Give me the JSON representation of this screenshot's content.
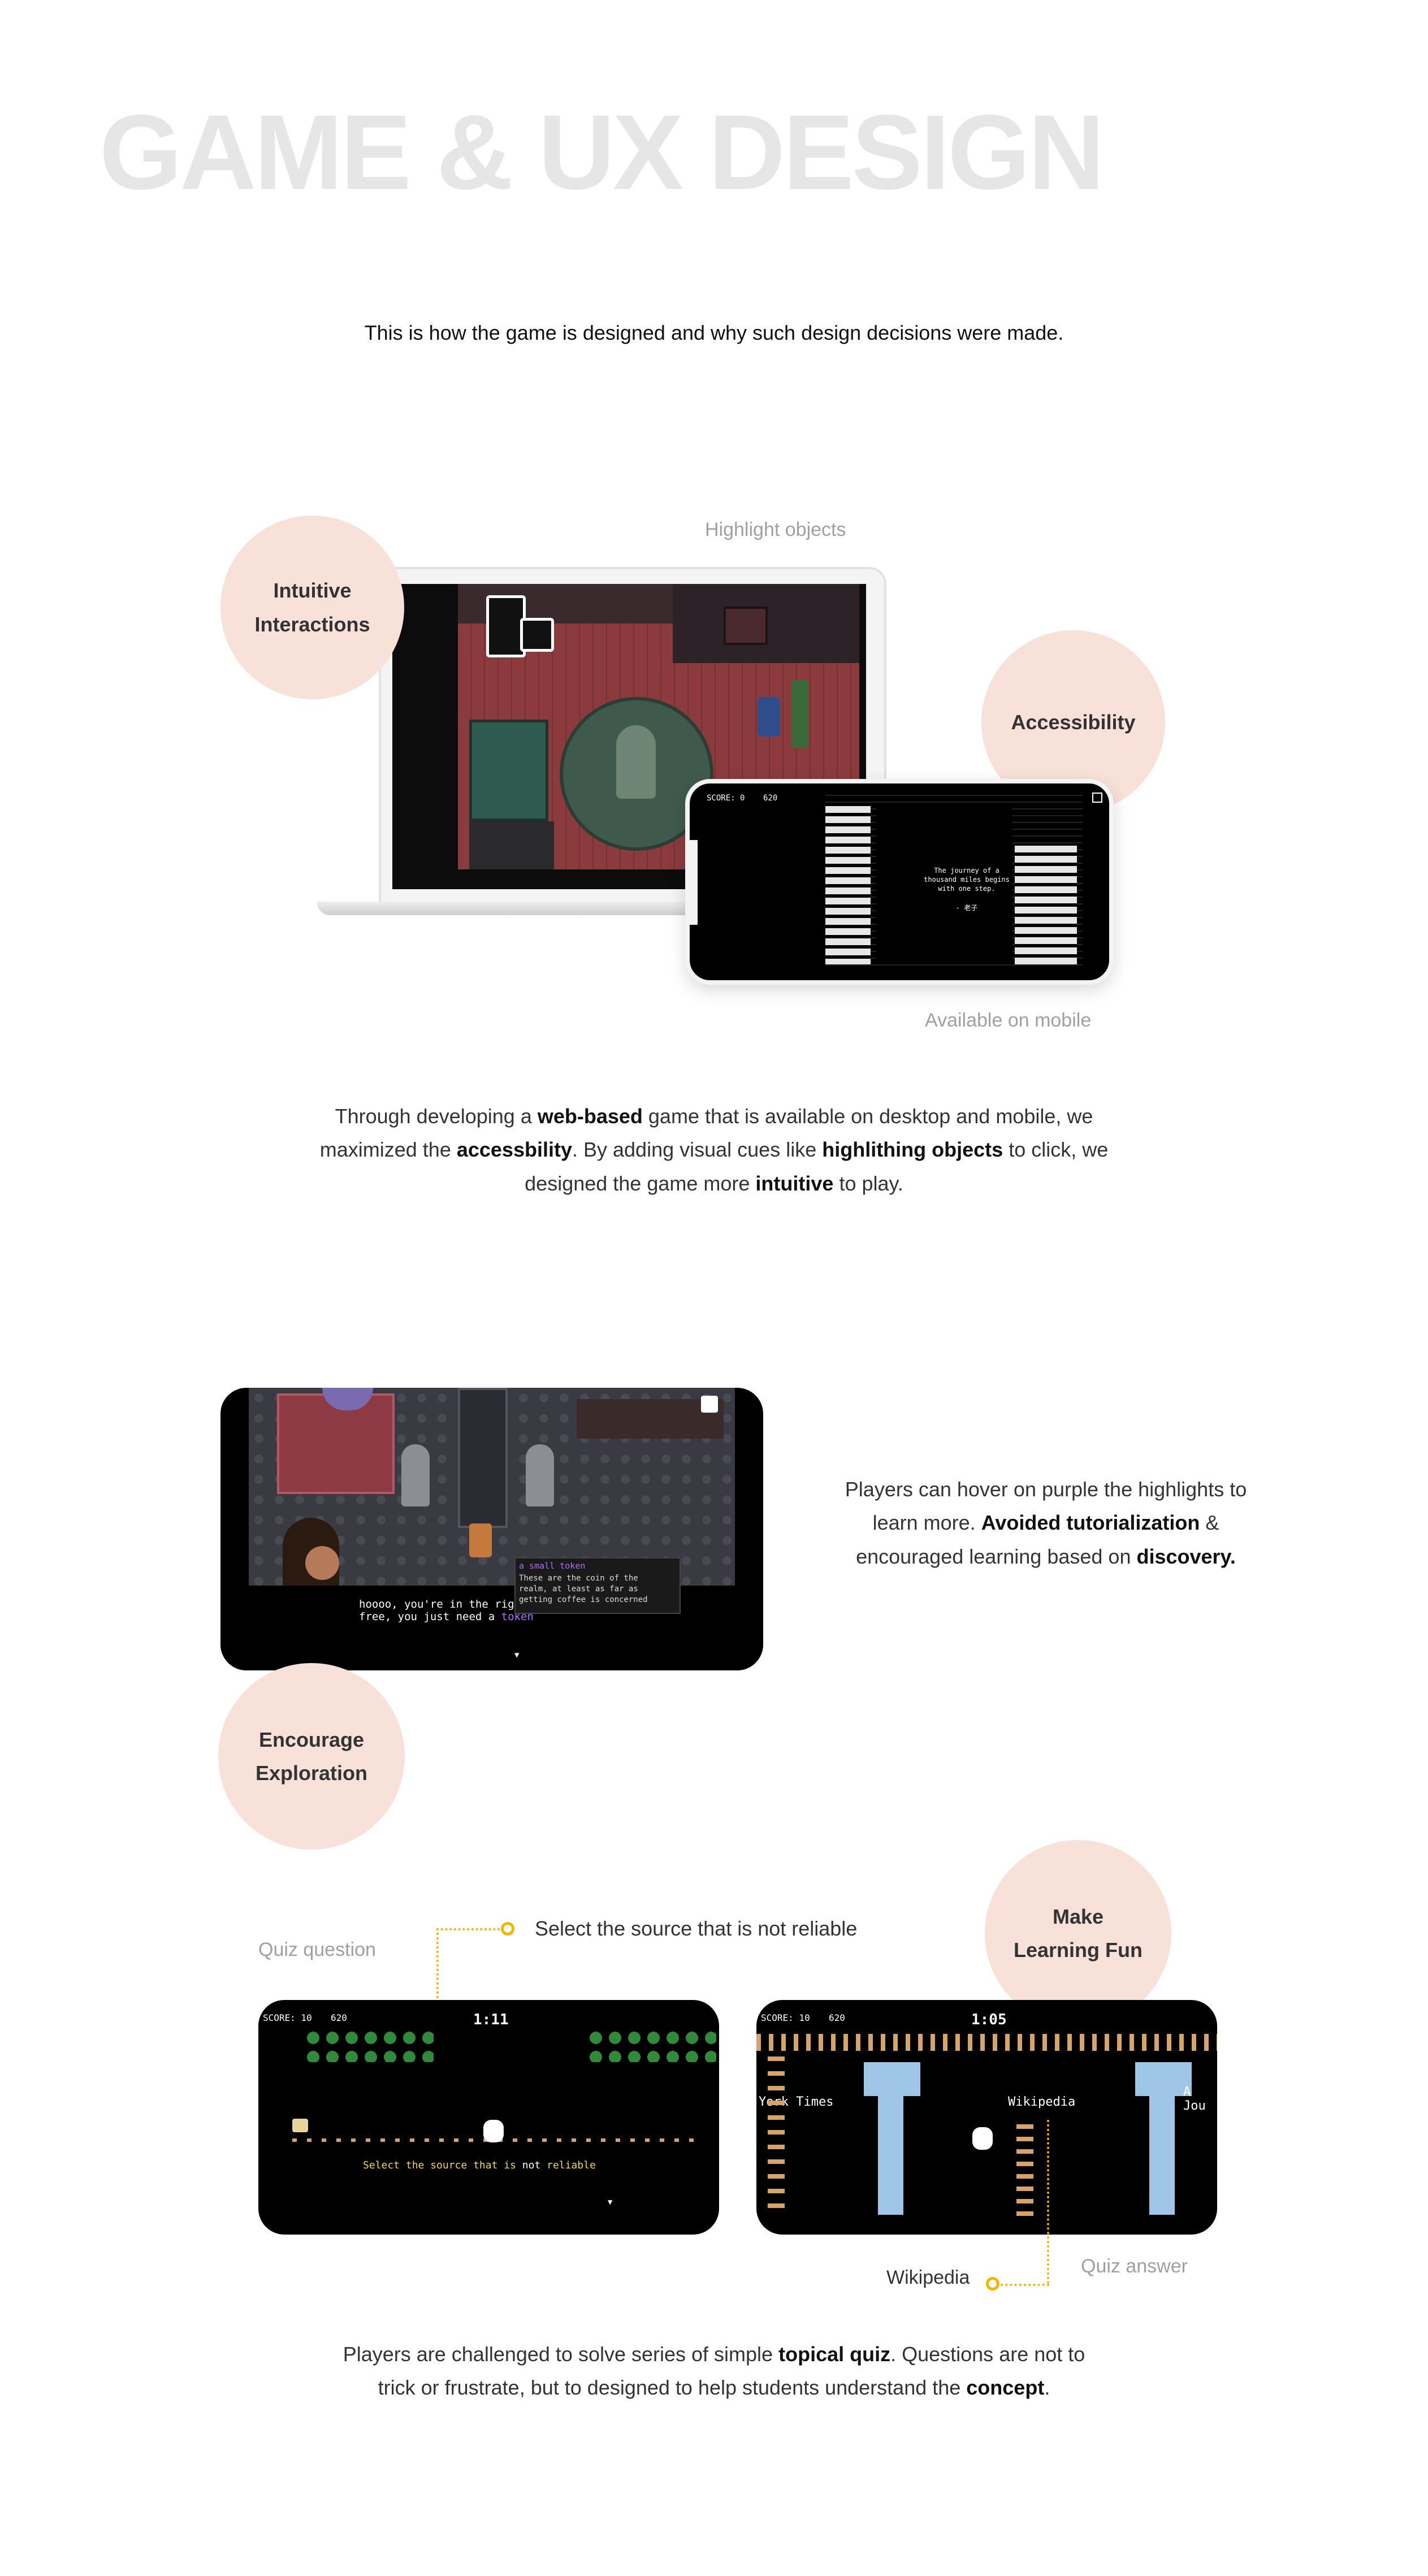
{
  "header": {
    "title": "GAME & UX DESIGN",
    "subtitle": "This is how the game is designed and why such design decisions were made."
  },
  "section1": {
    "circle_intuitive": [
      "Intuitive",
      "Interactions"
    ],
    "circle_accessibility": "Accessibility",
    "caption_highlight": "Highlight objects",
    "caption_mobile": "Available on mobile",
    "mobile_score": "SCORE: 0",
    "mobile_coins": "620",
    "mobile_quote": [
      "The journey of a",
      "thousand miles begins",
      "with one step.",
      "- 老子"
    ],
    "paragraph": {
      "p1": "Through developing a ",
      "b1": "web-based",
      "p2": " game that is available on desktop and mobile, we maximized the ",
      "b2": "accessbility",
      "p3": ". By adding visual cues like ",
      "b3": "highlithing objects",
      "p4": " to click, we designed the game more ",
      "b4": "intuitive",
      "p5": " to play."
    }
  },
  "section2": {
    "circle_encourage": [
      "Encourage",
      "Exploration"
    ],
    "dialog_line1": "hoooo, you're in the right",
    "dialog_line2_a": "free, you just need a ",
    "dialog_line2_b": "token",
    "tooltip_title": "a small token",
    "tooltip_body": [
      "These are the coin of the",
      "realm, at least as far as",
      "getting coffee is concerned"
    ],
    "paragraph": {
      "p1": "Players can hover on purple the highlights to learn more. ",
      "b1": "Avoided tutorialization",
      "p2": " & encouraged learning based on ",
      "b2": "discovery."
    }
  },
  "section3": {
    "circle_fun": [
      "Make",
      "Learning Fun"
    ],
    "caption_quiz_question": "Quiz question",
    "quiz_prompt": "Select the source that is not reliable",
    "caption_quiz_answer": "Quiz answer",
    "answer_label": "Wikipedia",
    "screen1": {
      "score": "SCORE: 10",
      "coins": "620",
      "timer": "1:11",
      "bottom_text_a": "Select the source that is ",
      "bottom_text_b": "not",
      "bottom_text_c": " reliable"
    },
    "screen2": {
      "score": "SCORE: 10",
      "coins": "620",
      "timer": "1:05",
      "left_sign": "York Times",
      "middle_sign": "Wikipedia",
      "right_sign": "A Jou"
    },
    "paragraph": {
      "p1": "Players are challenged to solve series of simple ",
      "b1": "topical quiz",
      "p2": ". Questions are not to trick or frustrate, but to designed to help students understand the ",
      "b2": "concept",
      "p3": "."
    }
  },
  "colors": {
    "circle_bg": "#f7e1d9",
    "accent_yellow": "#f5b400",
    "highlight_purple": "#b36bff",
    "title_grey": "#e6e6e6"
  }
}
